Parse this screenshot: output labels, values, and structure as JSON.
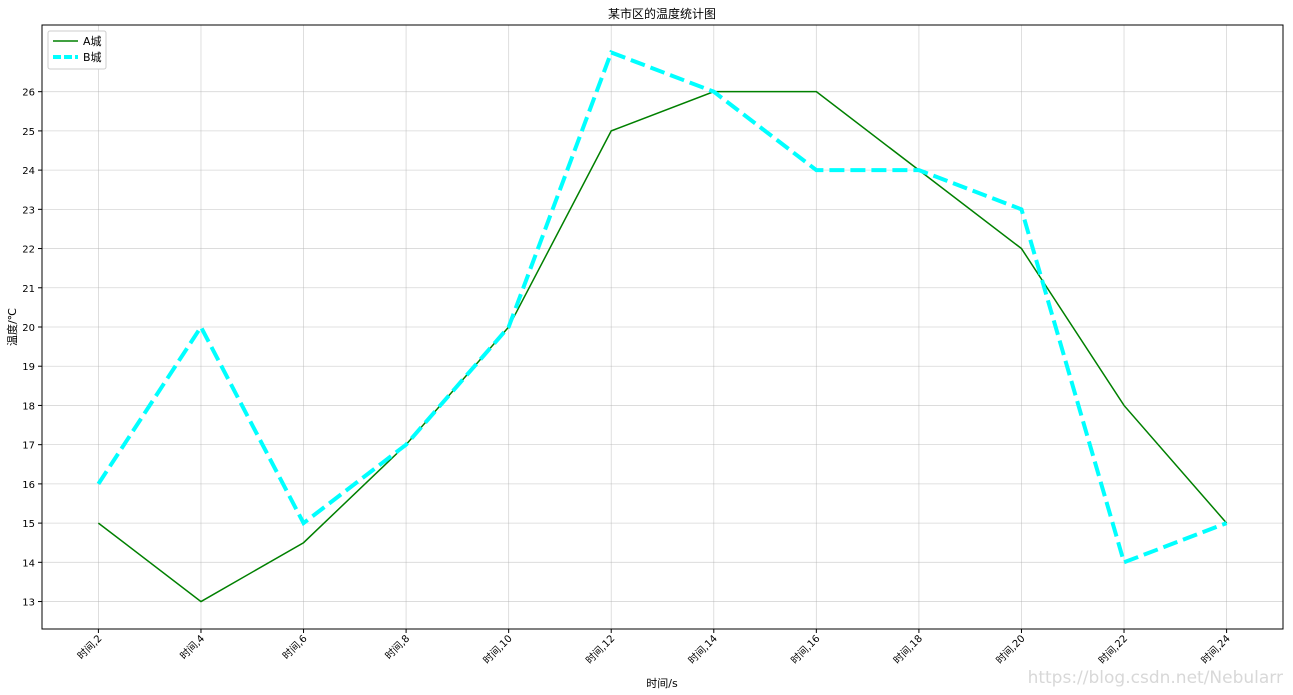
{
  "chart_data": {
    "type": "line",
    "title": "某市区的温度统计图",
    "x_label": "时间/s",
    "y_label": "温度/℃",
    "categories": [
      "时间,2",
      "时间,4",
      "时间,6",
      "时间,8",
      "时间,10",
      "时间,12",
      "时间,14",
      "时间,16",
      "时间,18",
      "时间,20",
      "时间,22",
      "时间,24"
    ],
    "series": [
      {
        "name": "A城",
        "color": "#008000",
        "linestyle": "solid",
        "values": [
          15,
          13,
          14.5,
          17,
          20,
          25,
          26,
          26,
          24,
          22,
          18,
          15
        ]
      },
      {
        "name": "B城",
        "color": "#00ffff",
        "linestyle": "dashed",
        "values": [
          16,
          20,
          15,
          17,
          20,
          27,
          26,
          24,
          24,
          23,
          14,
          15
        ]
      }
    ],
    "ylim": [
      12.3,
      27.7
    ],
    "yticks": [
      13,
      14,
      15,
      16,
      17,
      18,
      19,
      20,
      21,
      22,
      23,
      24,
      25,
      26
    ],
    "grid": true,
    "legend": "upper left",
    "watermark": "https://blog.csdn.net/Nebularr"
  }
}
